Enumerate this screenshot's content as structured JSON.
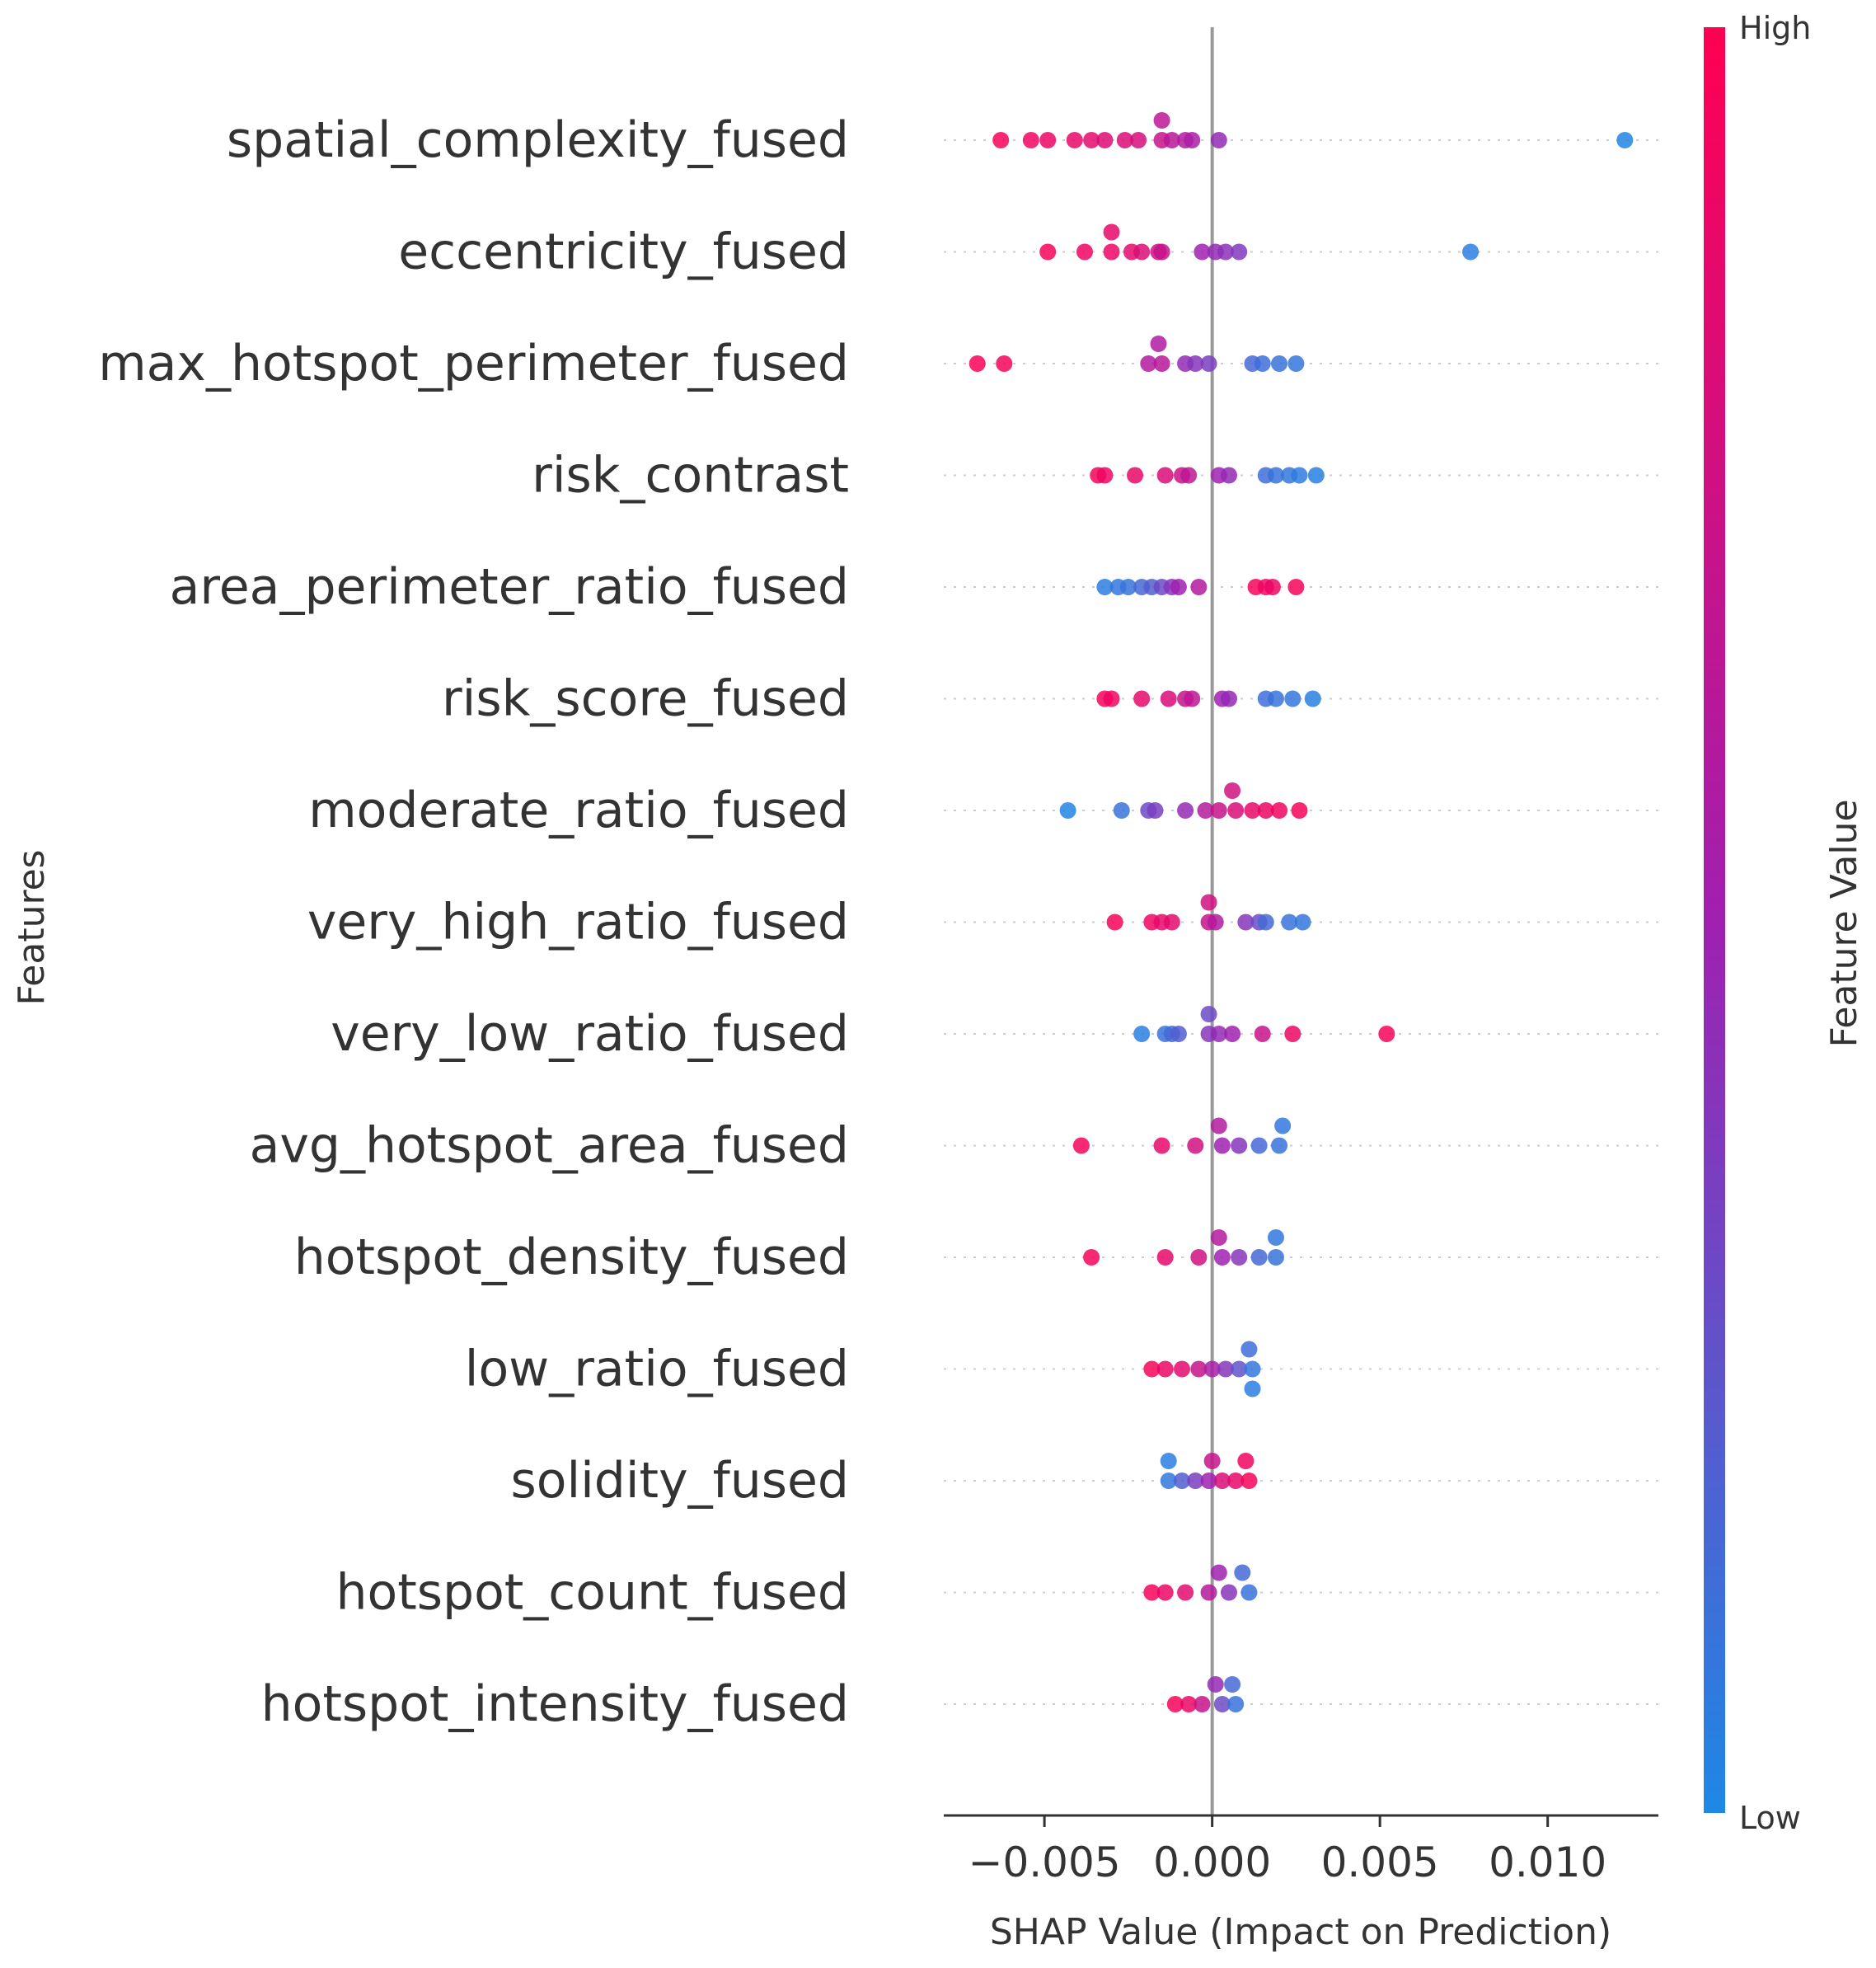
{
  "chart_data": {
    "type": "scatter",
    "subtype": "shap-beeswarm",
    "xlabel": "SHAP Value (Impact on Prediction)",
    "ylabel": "Features",
    "xlim": [
      -0.008,
      0.0133
    ],
    "xticks": [
      -0.005,
      0.0,
      0.005,
      0.01
    ],
    "xtick_labels": [
      "−0.005",
      "0.000",
      "0.005",
      "0.010"
    ],
    "colorbar": {
      "label": "Feature Value",
      "high_label": "High",
      "low_label": "Low",
      "low_color": "#1e88e5",
      "mid_color": "#a020b0",
      "high_color": "#ff0052"
    },
    "features": [
      {
        "name": "spatial_complexity_fused",
        "points": [
          {
            "x": -0.0063,
            "v": 0.95,
            "jit": 0
          },
          {
            "x": -0.0054,
            "v": 0.92,
            "jit": 0
          },
          {
            "x": -0.0049,
            "v": 0.9,
            "jit": 0
          },
          {
            "x": -0.0041,
            "v": 0.88,
            "jit": 0
          },
          {
            "x": -0.0036,
            "v": 0.85,
            "jit": 0
          },
          {
            "x": -0.0032,
            "v": 0.82,
            "jit": 0
          },
          {
            "x": -0.0026,
            "v": 0.8,
            "jit": 0
          },
          {
            "x": -0.0022,
            "v": 0.78,
            "jit": 0
          },
          {
            "x": -0.0015,
            "v": 0.7,
            "jit": 0
          },
          {
            "x": -0.0015,
            "v": 0.65,
            "jit": -1
          },
          {
            "x": -0.0012,
            "v": 0.62,
            "jit": 0
          },
          {
            "x": -0.0008,
            "v": 0.6,
            "jit": 0
          },
          {
            "x": -0.0006,
            "v": 0.55,
            "jit": 0
          },
          {
            "x": 0.0002,
            "v": 0.45,
            "jit": 0
          },
          {
            "x": 0.0123,
            "v": 0.02,
            "jit": 0
          }
        ]
      },
      {
        "name": "eccentricity_fused",
        "points": [
          {
            "x": -0.0049,
            "v": 0.95,
            "jit": 0
          },
          {
            "x": -0.0038,
            "v": 0.92,
            "jit": 0
          },
          {
            "x": -0.003,
            "v": 0.9,
            "jit": 0
          },
          {
            "x": -0.003,
            "v": 0.88,
            "jit": -1
          },
          {
            "x": -0.0024,
            "v": 0.85,
            "jit": 0
          },
          {
            "x": -0.0021,
            "v": 0.8,
            "jit": 0
          },
          {
            "x": -0.0016,
            "v": 0.75,
            "jit": 0
          },
          {
            "x": -0.0015,
            "v": 0.7,
            "jit": 0
          },
          {
            "x": -0.0003,
            "v": 0.5,
            "jit": 0
          },
          {
            "x": 0.0001,
            "v": 0.45,
            "jit": 0
          },
          {
            "x": 0.0004,
            "v": 0.42,
            "jit": 0
          },
          {
            "x": 0.0008,
            "v": 0.38,
            "jit": 0
          },
          {
            "x": 0.0077,
            "v": 0.05,
            "jit": 0
          }
        ]
      },
      {
        "name": "max_hotspot_perimeter_fused",
        "points": [
          {
            "x": -0.007,
            "v": 0.97,
            "jit": 0
          },
          {
            "x": -0.0062,
            "v": 0.95,
            "jit": 0
          },
          {
            "x": -0.0019,
            "v": 0.6,
            "jit": 0
          },
          {
            "x": -0.0016,
            "v": 0.58,
            "jit": -1
          },
          {
            "x": -0.0015,
            "v": 0.62,
            "jit": 0
          },
          {
            "x": -0.0008,
            "v": 0.45,
            "jit": 0
          },
          {
            "x": -0.0005,
            "v": 0.4,
            "jit": 0
          },
          {
            "x": -0.0001,
            "v": 0.35,
            "jit": 0
          },
          {
            "x": 0.0012,
            "v": 0.15,
            "jit": 0
          },
          {
            "x": 0.0015,
            "v": 0.12,
            "jit": 0
          },
          {
            "x": 0.002,
            "v": 0.1,
            "jit": 0
          },
          {
            "x": 0.0025,
            "v": 0.08,
            "jit": 0
          }
        ]
      },
      {
        "name": "risk_contrast",
        "points": [
          {
            "x": -0.0034,
            "v": 0.95,
            "jit": 0
          },
          {
            "x": -0.0032,
            "v": 0.92,
            "jit": 0
          },
          {
            "x": -0.0023,
            "v": 0.88,
            "jit": 0
          },
          {
            "x": -0.0014,
            "v": 0.8,
            "jit": 0
          },
          {
            "x": -0.0009,
            "v": 0.72,
            "jit": 0
          },
          {
            "x": -0.0007,
            "v": 0.65,
            "jit": 0
          },
          {
            "x": 0.0002,
            "v": 0.5,
            "jit": 0
          },
          {
            "x": 0.0005,
            "v": 0.45,
            "jit": 0
          },
          {
            "x": 0.0016,
            "v": 0.12,
            "jit": 0
          },
          {
            "x": 0.0019,
            "v": 0.1,
            "jit": 0
          },
          {
            "x": 0.0023,
            "v": 0.08,
            "jit": 0
          },
          {
            "x": 0.0026,
            "v": 0.06,
            "jit": 0
          },
          {
            "x": 0.0031,
            "v": 0.04,
            "jit": 0
          }
        ]
      },
      {
        "name": "area_perimeter_ratio_fused",
        "points": [
          {
            "x": -0.0032,
            "v": 0.05,
            "jit": 0
          },
          {
            "x": -0.0028,
            "v": 0.08,
            "jit": 0
          },
          {
            "x": -0.0025,
            "v": 0.1,
            "jit": 0
          },
          {
            "x": -0.0021,
            "v": 0.15,
            "jit": 0
          },
          {
            "x": -0.0018,
            "v": 0.2,
            "jit": 0
          },
          {
            "x": -0.0015,
            "v": 0.3,
            "jit": 0
          },
          {
            "x": -0.0012,
            "v": 0.4,
            "jit": 0
          },
          {
            "x": -0.001,
            "v": 0.5,
            "jit": 0
          },
          {
            "x": -0.0004,
            "v": 0.6,
            "jit": 0
          },
          {
            "x": 0.0013,
            "v": 0.95,
            "jit": 0
          },
          {
            "x": 0.0016,
            "v": 0.92,
            "jit": 0
          },
          {
            "x": 0.0018,
            "v": 0.9,
            "jit": 0
          },
          {
            "x": 0.0025,
            "v": 0.95,
            "jit": 0
          }
        ]
      },
      {
        "name": "risk_score_fused",
        "points": [
          {
            "x": -0.0032,
            "v": 0.95,
            "jit": 0
          },
          {
            "x": -0.003,
            "v": 0.92,
            "jit": 0
          },
          {
            "x": -0.0021,
            "v": 0.88,
            "jit": 0
          },
          {
            "x": -0.0013,
            "v": 0.8,
            "jit": 0
          },
          {
            "x": -0.0008,
            "v": 0.7,
            "jit": 0
          },
          {
            "x": -0.0006,
            "v": 0.65,
            "jit": 0
          },
          {
            "x": 0.0003,
            "v": 0.5,
            "jit": 0
          },
          {
            "x": 0.0005,
            "v": 0.45,
            "jit": 0
          },
          {
            "x": 0.0016,
            "v": 0.12,
            "jit": 0
          },
          {
            "x": 0.0019,
            "v": 0.1,
            "jit": 0
          },
          {
            "x": 0.0024,
            "v": 0.08,
            "jit": 0
          },
          {
            "x": 0.003,
            "v": 0.04,
            "jit": 0
          }
        ]
      },
      {
        "name": "moderate_ratio_fused",
        "points": [
          {
            "x": -0.0043,
            "v": 0.02,
            "jit": 0
          },
          {
            "x": -0.0027,
            "v": 0.1,
            "jit": 0
          },
          {
            "x": -0.0019,
            "v": 0.3,
            "jit": 0
          },
          {
            "x": -0.0017,
            "v": 0.35,
            "jit": 0
          },
          {
            "x": -0.0008,
            "v": 0.45,
            "jit": 0
          },
          {
            "x": -0.0002,
            "v": 0.6,
            "jit": 0
          },
          {
            "x": 0.0002,
            "v": 0.7,
            "jit": 0
          },
          {
            "x": 0.0006,
            "v": 0.75,
            "jit": -1
          },
          {
            "x": 0.0007,
            "v": 0.8,
            "jit": 0
          },
          {
            "x": 0.0012,
            "v": 0.88,
            "jit": 0
          },
          {
            "x": 0.0016,
            "v": 0.9,
            "jit": 0
          },
          {
            "x": 0.002,
            "v": 0.92,
            "jit": 0
          },
          {
            "x": 0.0026,
            "v": 0.95,
            "jit": 0
          }
        ]
      },
      {
        "name": "very_high_ratio_fused",
        "points": [
          {
            "x": -0.0029,
            "v": 0.95,
            "jit": 0
          },
          {
            "x": -0.0018,
            "v": 0.92,
            "jit": 0
          },
          {
            "x": -0.0015,
            "v": 0.88,
            "jit": 0
          },
          {
            "x": -0.0012,
            "v": 0.85,
            "jit": 0
          },
          {
            "x": -0.0001,
            "v": 0.75,
            "jit": -1
          },
          {
            "x": -0.0001,
            "v": 0.7,
            "jit": 0
          },
          {
            "x": 0.0001,
            "v": 0.6,
            "jit": 0
          },
          {
            "x": 0.001,
            "v": 0.4,
            "jit": 0
          },
          {
            "x": 0.0014,
            "v": 0.3,
            "jit": 0
          },
          {
            "x": 0.0016,
            "v": 0.15,
            "jit": 0
          },
          {
            "x": 0.0023,
            "v": 0.1,
            "jit": 0
          },
          {
            "x": 0.0027,
            "v": 0.08,
            "jit": 0
          }
        ]
      },
      {
        "name": "very_low_ratio_fused",
        "points": [
          {
            "x": -0.0021,
            "v": 0.05,
            "jit": 0
          },
          {
            "x": -0.0014,
            "v": 0.1,
            "jit": 0
          },
          {
            "x": -0.0012,
            "v": 0.15,
            "jit": 0
          },
          {
            "x": -0.001,
            "v": 0.2,
            "jit": 0
          },
          {
            "x": -0.0001,
            "v": 0.3,
            "jit": -1
          },
          {
            "x": -0.0001,
            "v": 0.4,
            "jit": 0
          },
          {
            "x": 0.0002,
            "v": 0.45,
            "jit": 0
          },
          {
            "x": 0.0006,
            "v": 0.5,
            "jit": 0
          },
          {
            "x": 0.0015,
            "v": 0.7,
            "jit": 0
          },
          {
            "x": 0.0024,
            "v": 0.9,
            "jit": 0
          },
          {
            "x": 0.0052,
            "v": 0.95,
            "jit": 0
          }
        ]
      },
      {
        "name": "avg_hotspot_area_fused",
        "points": [
          {
            "x": -0.0039,
            "v": 0.95,
            "jit": 0
          },
          {
            "x": -0.0015,
            "v": 0.88,
            "jit": 0
          },
          {
            "x": -0.0005,
            "v": 0.75,
            "jit": 0
          },
          {
            "x": 0.0002,
            "v": 0.6,
            "jit": -1
          },
          {
            "x": 0.0003,
            "v": 0.5,
            "jit": 0
          },
          {
            "x": 0.0008,
            "v": 0.4,
            "jit": 0
          },
          {
            "x": 0.0014,
            "v": 0.15,
            "jit": 0
          },
          {
            "x": 0.002,
            "v": 0.1,
            "jit": 0
          },
          {
            "x": 0.0021,
            "v": 0.08,
            "jit": -1
          }
        ]
      },
      {
        "name": "hotspot_density_fused",
        "points": [
          {
            "x": -0.0036,
            "v": 0.95,
            "jit": 0
          },
          {
            "x": -0.0014,
            "v": 0.88,
            "jit": 0
          },
          {
            "x": -0.0004,
            "v": 0.75,
            "jit": 0
          },
          {
            "x": 0.0002,
            "v": 0.6,
            "jit": -1
          },
          {
            "x": 0.0003,
            "v": 0.5,
            "jit": 0
          },
          {
            "x": 0.0008,
            "v": 0.4,
            "jit": 0
          },
          {
            "x": 0.0014,
            "v": 0.15,
            "jit": 0
          },
          {
            "x": 0.0019,
            "v": 0.1,
            "jit": 0
          },
          {
            "x": 0.0019,
            "v": 0.08,
            "jit": -1
          }
        ]
      },
      {
        "name": "low_ratio_fused",
        "points": [
          {
            "x": -0.0018,
            "v": 0.95,
            "jit": 0
          },
          {
            "x": -0.0014,
            "v": 0.9,
            "jit": 0
          },
          {
            "x": -0.0009,
            "v": 0.85,
            "jit": 0
          },
          {
            "x": -0.0004,
            "v": 0.7,
            "jit": 0
          },
          {
            "x": 0.0,
            "v": 0.55,
            "jit": 0
          },
          {
            "x": 0.0004,
            "v": 0.4,
            "jit": 0
          },
          {
            "x": 0.0008,
            "v": 0.25,
            "jit": 0
          },
          {
            "x": 0.0011,
            "v": 0.12,
            "jit": -1
          },
          {
            "x": 0.0012,
            "v": 0.08,
            "jit": 0
          },
          {
            "x": 0.0012,
            "v": 0.05,
            "jit": 1
          }
        ]
      },
      {
        "name": "solidity_fused",
        "points": [
          {
            "x": -0.0013,
            "v": 0.05,
            "jit": -1
          },
          {
            "x": -0.0013,
            "v": 0.08,
            "jit": 0
          },
          {
            "x": -0.0009,
            "v": 0.2,
            "jit": 0
          },
          {
            "x": -0.0005,
            "v": 0.35,
            "jit": 0
          },
          {
            "x": -0.0001,
            "v": 0.5,
            "jit": 0
          },
          {
            "x": 0.0,
            "v": 0.7,
            "jit": -1
          },
          {
            "x": 0.0003,
            "v": 0.8,
            "jit": 0
          },
          {
            "x": 0.0007,
            "v": 0.88,
            "jit": 0
          },
          {
            "x": 0.001,
            "v": 0.92,
            "jit": -1
          },
          {
            "x": 0.0011,
            "v": 0.95,
            "jit": 0
          }
        ]
      },
      {
        "name": "hotspot_count_fused",
        "points": [
          {
            "x": -0.0018,
            "v": 0.95,
            "jit": 0
          },
          {
            "x": -0.0014,
            "v": 0.9,
            "jit": 0
          },
          {
            "x": -0.0008,
            "v": 0.85,
            "jit": 0
          },
          {
            "x": -0.0001,
            "v": 0.6,
            "jit": 0
          },
          {
            "x": 0.0002,
            "v": 0.5,
            "jit": -1
          },
          {
            "x": 0.0005,
            "v": 0.4,
            "jit": 0
          },
          {
            "x": 0.0009,
            "v": 0.15,
            "jit": -1
          },
          {
            "x": 0.0011,
            "v": 0.1,
            "jit": 0
          }
        ]
      },
      {
        "name": "hotspot_intensity_fused",
        "points": [
          {
            "x": -0.0011,
            "v": 0.95,
            "jit": 0
          },
          {
            "x": -0.0007,
            "v": 0.9,
            "jit": 0
          },
          {
            "x": -0.0003,
            "v": 0.7,
            "jit": 0
          },
          {
            "x": 0.0001,
            "v": 0.45,
            "jit": -1
          },
          {
            "x": 0.0003,
            "v": 0.3,
            "jit": 0
          },
          {
            "x": 0.0006,
            "v": 0.15,
            "jit": -1
          },
          {
            "x": 0.0007,
            "v": 0.1,
            "jit": 0
          }
        ]
      }
    ]
  }
}
